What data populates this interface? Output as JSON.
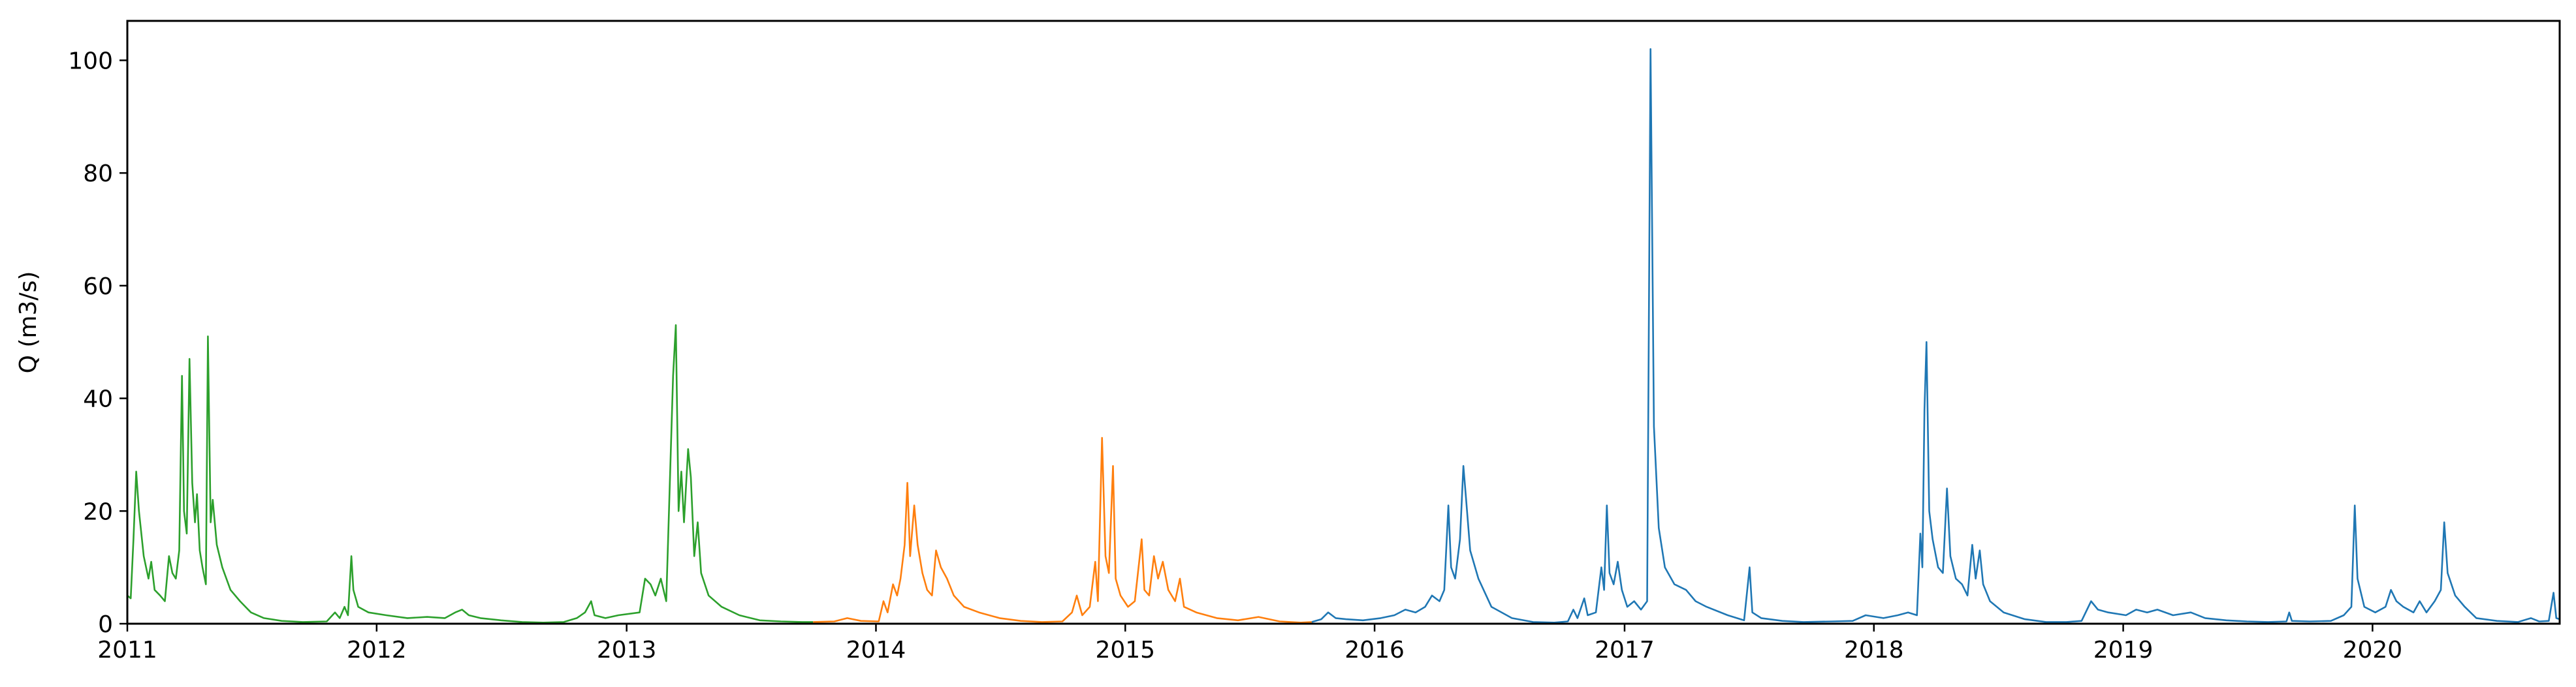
{
  "chart_data": {
    "type": "line",
    "title": "",
    "xlabel": "",
    "ylabel": "Q (m3/s)",
    "xlim": [
      "2011-01-01",
      "2020-10-01"
    ],
    "ylim": [
      0,
      107
    ],
    "x_ticks": [
      "2011",
      "2012",
      "2013",
      "2014",
      "2015",
      "2016",
      "2017",
      "2018",
      "2019",
      "2020"
    ],
    "y_ticks": [
      0,
      20,
      40,
      60,
      80,
      100
    ],
    "grid": false,
    "legend": "none",
    "series": [
      {
        "color": "#2ca02c",
        "points": [
          [
            "2011-01-01",
            5
          ],
          [
            "2011-01-06",
            4.5
          ],
          [
            "2011-01-10",
            15
          ],
          [
            "2011-01-14",
            27
          ],
          [
            "2011-01-18",
            20
          ],
          [
            "2011-01-25",
            12
          ],
          [
            "2011-02-01",
            8
          ],
          [
            "2011-02-05",
            11
          ],
          [
            "2011-02-10",
            6
          ],
          [
            "2011-02-18",
            5
          ],
          [
            "2011-02-25",
            4
          ],
          [
            "2011-03-03",
            12
          ],
          [
            "2011-03-08",
            9
          ],
          [
            "2011-03-13",
            8
          ],
          [
            "2011-03-18",
            13
          ],
          [
            "2011-03-22",
            44
          ],
          [
            "2011-03-25",
            20
          ],
          [
            "2011-03-29",
            16
          ],
          [
            "2011-04-02",
            47
          ],
          [
            "2011-04-06",
            25
          ],
          [
            "2011-04-10",
            18
          ],
          [
            "2011-04-13",
            23
          ],
          [
            "2011-04-17",
            13
          ],
          [
            "2011-04-21",
            10
          ],
          [
            "2011-04-26",
            7
          ],
          [
            "2011-04-29",
            51
          ],
          [
            "2011-05-03",
            18
          ],
          [
            "2011-05-06",
            22
          ],
          [
            "2011-05-12",
            14
          ],
          [
            "2011-05-20",
            10
          ],
          [
            "2011-06-01",
            6
          ],
          [
            "2011-06-15",
            4
          ],
          [
            "2011-07-01",
            2
          ],
          [
            "2011-07-20",
            1
          ],
          [
            "2011-08-15",
            0.5
          ],
          [
            "2011-09-15",
            0.3
          ],
          [
            "2011-10-20",
            0.4
          ],
          [
            "2011-11-01",
            2
          ],
          [
            "2011-11-08",
            1
          ],
          [
            "2011-11-15",
            3
          ],
          [
            "2011-11-20",
            1.5
          ],
          [
            "2011-11-25",
            12
          ],
          [
            "2011-11-28",
            6
          ],
          [
            "2011-12-05",
            3
          ],
          [
            "2011-12-20",
            2
          ],
          [
            "2012-01-15",
            1.5
          ],
          [
            "2012-02-15",
            1
          ],
          [
            "2012-03-15",
            1.2
          ],
          [
            "2012-04-10",
            1
          ],
          [
            "2012-04-25",
            2
          ],
          [
            "2012-05-05",
            2.5
          ],
          [
            "2012-05-15",
            1.5
          ],
          [
            "2012-06-01",
            1
          ],
          [
            "2012-07-01",
            0.6
          ],
          [
            "2012-08-01",
            0.3
          ],
          [
            "2012-09-01",
            0.2
          ],
          [
            "2012-10-01",
            0.3
          ],
          [
            "2012-10-20",
            1
          ],
          [
            "2012-11-01",
            2
          ],
          [
            "2012-11-10",
            4
          ],
          [
            "2012-11-15",
            1.5
          ],
          [
            "2012-12-01",
            1
          ],
          [
            "2012-12-20",
            1.5
          ],
          [
            "2013-01-20",
            2
          ],
          [
            "2013-01-28",
            8
          ],
          [
            "2013-02-05",
            7
          ],
          [
            "2013-02-12",
            5
          ],
          [
            "2013-02-20",
            8
          ],
          [
            "2013-02-28",
            4
          ],
          [
            "2013-03-10",
            44
          ],
          [
            "2013-03-14",
            53
          ],
          [
            "2013-03-18",
            20
          ],
          [
            "2013-03-22",
            27
          ],
          [
            "2013-03-26",
            18
          ],
          [
            "2013-04-01",
            31
          ],
          [
            "2013-04-05",
            26
          ],
          [
            "2013-04-10",
            12
          ],
          [
            "2013-04-15",
            18
          ],
          [
            "2013-04-20",
            9
          ],
          [
            "2013-05-01",
            5
          ],
          [
            "2013-05-20",
            3
          ],
          [
            "2013-06-15",
            1.5
          ],
          [
            "2013-07-15",
            0.6
          ],
          [
            "2013-08-15",
            0.4
          ],
          [
            "2013-09-15",
            0.3
          ],
          [
            "2013-10-01",
            0.3
          ]
        ]
      },
      {
        "color": "#ff7f0e",
        "points": [
          [
            "2013-10-01",
            0.3
          ],
          [
            "2013-11-01",
            0.4
          ],
          [
            "2013-11-20",
            1
          ],
          [
            "2013-12-10",
            0.5
          ],
          [
            "2014-01-05",
            0.4
          ],
          [
            "2014-01-12",
            4
          ],
          [
            "2014-01-18",
            2
          ],
          [
            "2014-01-26",
            7
          ],
          [
            "2014-02-01",
            5
          ],
          [
            "2014-02-06",
            8
          ],
          [
            "2014-02-12",
            14
          ],
          [
            "2014-02-16",
            25
          ],
          [
            "2014-02-20",
            12
          ],
          [
            "2014-02-26",
            21
          ],
          [
            "2014-03-03",
            14
          ],
          [
            "2014-03-10",
            9
          ],
          [
            "2014-03-17",
            6
          ],
          [
            "2014-03-24",
            5
          ],
          [
            "2014-03-30",
            13
          ],
          [
            "2014-04-06",
            10
          ],
          [
            "2014-04-15",
            8
          ],
          [
            "2014-04-25",
            5
          ],
          [
            "2014-05-10",
            3
          ],
          [
            "2014-06-01",
            2
          ],
          [
            "2014-07-01",
            1
          ],
          [
            "2014-08-01",
            0.5
          ],
          [
            "2014-09-01",
            0.3
          ],
          [
            "2014-10-01",
            0.4
          ],
          [
            "2014-10-15",
            2
          ],
          [
            "2014-10-22",
            5
          ],
          [
            "2014-10-30",
            1.5
          ],
          [
            "2014-11-10",
            3
          ],
          [
            "2014-11-18",
            11
          ],
          [
            "2014-11-22",
            4
          ],
          [
            "2014-11-28",
            33
          ],
          [
            "2014-12-03",
            12
          ],
          [
            "2014-12-08",
            9
          ],
          [
            "2014-12-14",
            28
          ],
          [
            "2014-12-18",
            8
          ],
          [
            "2014-12-25",
            5
          ],
          [
            "2015-01-05",
            3
          ],
          [
            "2015-01-15",
            4
          ],
          [
            "2015-01-25",
            15
          ],
          [
            "2015-01-29",
            6
          ],
          [
            "2015-02-05",
            5
          ],
          [
            "2015-02-12",
            12
          ],
          [
            "2015-02-18",
            8
          ],
          [
            "2015-02-25",
            11
          ],
          [
            "2015-03-05",
            6
          ],
          [
            "2015-03-15",
            4
          ],
          [
            "2015-03-22",
            8
          ],
          [
            "2015-03-28",
            3
          ],
          [
            "2015-04-15",
            2
          ],
          [
            "2015-05-15",
            1
          ],
          [
            "2015-06-15",
            0.6
          ],
          [
            "2015-07-15",
            1.2
          ],
          [
            "2015-08-15",
            0.4
          ],
          [
            "2015-09-15",
            0.2
          ],
          [
            "2015-10-01",
            0.3
          ]
        ]
      },
      {
        "color": "#1f77b4",
        "points": [
          [
            "2015-10-01",
            0.3
          ],
          [
            "2015-10-15",
            0.8
          ],
          [
            "2015-10-25",
            2
          ],
          [
            "2015-11-05",
            1
          ],
          [
            "2015-11-20",
            0.8
          ],
          [
            "2015-12-15",
            0.6
          ],
          [
            "2016-01-10",
            1
          ],
          [
            "2016-01-30",
            1.5
          ],
          [
            "2016-02-15",
            2.5
          ],
          [
            "2016-03-01",
            2
          ],
          [
            "2016-03-15",
            3
          ],
          [
            "2016-03-25",
            5
          ],
          [
            "2016-04-05",
            4
          ],
          [
            "2016-04-12",
            6
          ],
          [
            "2016-04-18",
            21
          ],
          [
            "2016-04-22",
            10
          ],
          [
            "2016-04-28",
            8
          ],
          [
            "2016-05-05",
            15
          ],
          [
            "2016-05-10",
            28
          ],
          [
            "2016-05-14",
            22
          ],
          [
            "2016-05-20",
            13
          ],
          [
            "2016-06-01",
            8
          ],
          [
            "2016-06-20",
            3
          ],
          [
            "2016-07-20",
            1
          ],
          [
            "2016-08-20",
            0.3
          ],
          [
            "2016-09-20",
            0.2
          ],
          [
            "2016-10-10",
            0.4
          ],
          [
            "2016-10-18",
            2.5
          ],
          [
            "2016-10-24",
            1
          ],
          [
            "2016-11-03",
            4.5
          ],
          [
            "2016-11-08",
            1.5
          ],
          [
            "2016-11-20",
            2
          ],
          [
            "2016-11-28",
            10
          ],
          [
            "2016-12-02",
            6
          ],
          [
            "2016-12-06",
            21
          ],
          [
            "2016-12-10",
            9
          ],
          [
            "2016-12-16",
            7
          ],
          [
            "2016-12-22",
            11
          ],
          [
            "2016-12-28",
            6
          ],
          [
            "2017-01-05",
            3
          ],
          [
            "2017-01-15",
            4
          ],
          [
            "2017-01-25",
            2.5
          ],
          [
            "2017-02-03",
            4
          ],
          [
            "2017-02-08",
            102
          ],
          [
            "2017-02-13",
            35
          ],
          [
            "2017-02-20",
            17
          ],
          [
            "2017-03-01",
            10
          ],
          [
            "2017-03-15",
            7
          ],
          [
            "2017-04-01",
            6
          ],
          [
            "2017-04-15",
            4
          ],
          [
            "2017-05-01",
            3
          ],
          [
            "2017-06-01",
            1.5
          ],
          [
            "2017-06-25",
            0.6
          ],
          [
            "2017-07-03",
            10
          ],
          [
            "2017-07-07",
            2
          ],
          [
            "2017-07-20",
            1
          ],
          [
            "2017-08-20",
            0.5
          ],
          [
            "2017-09-20",
            0.3
          ],
          [
            "2017-11-01",
            0.4
          ],
          [
            "2017-12-01",
            0.5
          ],
          [
            "2017-12-20",
            1.5
          ],
          [
            "2018-01-15",
            1
          ],
          [
            "2018-02-05",
            1.5
          ],
          [
            "2018-02-20",
            2
          ],
          [
            "2018-03-05",
            1.5
          ],
          [
            "2018-03-10",
            16
          ],
          [
            "2018-03-13",
            10
          ],
          [
            "2018-03-16",
            38
          ],
          [
            "2018-03-19",
            50
          ],
          [
            "2018-03-23",
            20
          ],
          [
            "2018-03-28",
            15
          ],
          [
            "2018-04-05",
            10
          ],
          [
            "2018-04-12",
            9
          ],
          [
            "2018-04-18",
            24
          ],
          [
            "2018-04-23",
            12
          ],
          [
            "2018-05-01",
            8
          ],
          [
            "2018-05-10",
            7
          ],
          [
            "2018-05-18",
            5
          ],
          [
            "2018-05-25",
            14
          ],
          [
            "2018-05-30",
            8
          ],
          [
            "2018-06-05",
            13
          ],
          [
            "2018-06-10",
            7
          ],
          [
            "2018-06-20",
            4
          ],
          [
            "2018-07-10",
            2
          ],
          [
            "2018-08-10",
            0.8
          ],
          [
            "2018-09-10",
            0.3
          ],
          [
            "2018-10-10",
            0.3
          ],
          [
            "2018-11-01",
            0.5
          ],
          [
            "2018-11-15",
            4
          ],
          [
            "2018-11-25",
            2.5
          ],
          [
            "2018-12-10",
            2
          ],
          [
            "2019-01-05",
            1.5
          ],
          [
            "2019-01-20",
            2.5
          ],
          [
            "2019-02-05",
            2
          ],
          [
            "2019-02-20",
            2.5
          ],
          [
            "2019-03-15",
            1.5
          ],
          [
            "2019-04-10",
            2
          ],
          [
            "2019-05-01",
            1
          ],
          [
            "2019-06-01",
            0.6
          ],
          [
            "2019-07-01",
            0.4
          ],
          [
            "2019-08-01",
            0.3
          ],
          [
            "2019-08-28",
            0.4
          ],
          [
            "2019-09-01",
            2
          ],
          [
            "2019-09-05",
            0.5
          ],
          [
            "2019-10-01",
            0.4
          ],
          [
            "2019-11-01",
            0.5
          ],
          [
            "2019-11-20",
            1.5
          ],
          [
            "2019-12-01",
            3
          ],
          [
            "2019-12-06",
            21
          ],
          [
            "2019-12-10",
            8
          ],
          [
            "2019-12-20",
            3
          ],
          [
            "2020-01-05",
            2
          ],
          [
            "2020-01-20",
            3
          ],
          [
            "2020-01-28",
            6
          ],
          [
            "2020-02-05",
            4
          ],
          [
            "2020-02-15",
            3
          ],
          [
            "2020-03-01",
            2
          ],
          [
            "2020-03-10",
            4
          ],
          [
            "2020-03-20",
            2
          ],
          [
            "2020-04-01",
            4
          ],
          [
            "2020-04-10",
            6
          ],
          [
            "2020-04-15",
            18
          ],
          [
            "2020-04-20",
            9
          ],
          [
            "2020-05-01",
            5
          ],
          [
            "2020-05-15",
            3
          ],
          [
            "2020-06-01",
            1
          ],
          [
            "2020-07-01",
            0.5
          ],
          [
            "2020-08-01",
            0.3
          ],
          [
            "2020-08-20",
            1
          ],
          [
            "2020-09-01",
            0.4
          ],
          [
            "2020-09-15",
            0.5
          ],
          [
            "2020-09-22",
            5.5
          ],
          [
            "2020-09-26",
            1
          ],
          [
            "2020-10-01",
            0.8
          ]
        ]
      }
    ]
  }
}
